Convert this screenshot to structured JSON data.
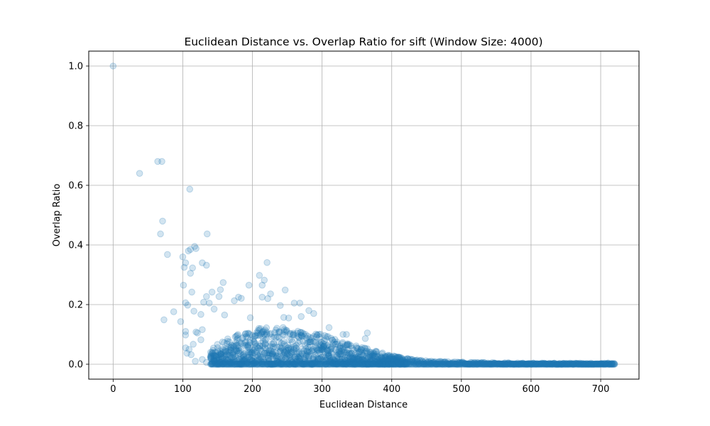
{
  "chart_data": {
    "type": "scatter",
    "title": "Euclidean Distance vs. Overlap Ratio for sift (Window Size: 4000)",
    "xlabel": "Euclidean Distance",
    "ylabel": "Overlap Ratio",
    "xlim": [
      -35,
      755
    ],
    "ylim": [
      -0.05,
      1.05
    ],
    "xticks": [
      0,
      100,
      200,
      300,
      400,
      500,
      600,
      700
    ],
    "yticks": [
      0.0,
      0.2,
      0.4,
      0.6,
      0.8,
      1.0
    ],
    "xtick_labels": [
      "0",
      "100",
      "200",
      "300",
      "400",
      "500",
      "600",
      "700"
    ],
    "ytick_labels": [
      "0.0",
      "0.2",
      "0.4",
      "0.6",
      "0.8",
      "1.0"
    ],
    "grid": true,
    "marker_color": "#1f77b4",
    "marker_alpha": 0.2,
    "series": [
      {
        "points": [
          [
            0,
            1.0
          ],
          [
            38,
            0.64
          ],
          [
            64,
            0.68
          ],
          [
            70,
            0.68
          ],
          [
            71,
            0.48
          ],
          [
            68,
            0.437
          ],
          [
            110,
            0.587
          ],
          [
            135,
            0.437
          ],
          [
            78,
            0.368
          ],
          [
            100,
            0.36
          ],
          [
            104,
            0.34
          ],
          [
            108,
            0.38
          ],
          [
            111,
            0.385
          ],
          [
            117,
            0.395
          ],
          [
            119,
            0.388
          ],
          [
            128,
            0.34
          ],
          [
            134,
            0.332
          ],
          [
            114,
            0.323
          ],
          [
            102,
            0.325
          ],
          [
            111,
            0.305
          ],
          [
            221,
            0.341
          ],
          [
            210,
            0.298
          ],
          [
            217,
            0.282
          ],
          [
            214,
            0.265
          ],
          [
            195,
            0.265
          ],
          [
            158,
            0.274
          ],
          [
            101,
            0.265
          ],
          [
            247,
            0.249
          ],
          [
            113,
            0.242
          ],
          [
            142,
            0.242
          ],
          [
            226,
            0.236
          ],
          [
            154,
            0.25
          ],
          [
            174,
            0.213
          ],
          [
            180,
            0.225
          ],
          [
            184,
            0.221
          ],
          [
            134,
            0.227
          ],
          [
            152,
            0.227
          ],
          [
            214,
            0.225
          ],
          [
            222,
            0.22
          ],
          [
            240,
            0.197
          ],
          [
            260,
            0.205
          ],
          [
            268,
            0.205
          ],
          [
            281,
            0.18
          ],
          [
            270,
            0.16
          ],
          [
            288,
            0.17
          ],
          [
            104,
            0.206
          ],
          [
            107,
            0.198
          ],
          [
            130,
            0.208
          ],
          [
            138,
            0.205
          ],
          [
            87,
            0.176
          ],
          [
            97,
            0.143
          ],
          [
            73,
            0.149
          ],
          [
            126,
            0.167
          ],
          [
            116,
            0.178
          ],
          [
            145,
            0.185
          ],
          [
            160,
            0.165
          ],
          [
            197,
            0.156
          ],
          [
            245,
            0.157
          ],
          [
            252,
            0.155
          ],
          [
            310,
            0.123
          ],
          [
            330,
            0.1
          ],
          [
            335,
            0.1
          ],
          [
            362,
            0.086
          ],
          [
            365,
            0.105
          ],
          [
            104,
            0.11
          ],
          [
            104,
            0.098
          ],
          [
            119,
            0.108
          ],
          [
            121,
            0.105
          ],
          [
            128,
            0.116
          ],
          [
            109,
            0.05
          ],
          [
            104,
            0.055
          ],
          [
            106,
            0.037
          ],
          [
            112,
            0.032
          ],
          [
            118,
            0.01
          ],
          [
            115,
            0.067
          ],
          [
            128,
            0.016
          ],
          [
            134,
            0.006
          ],
          [
            126,
            0.082
          ],
          [
            140,
            0.04
          ]
        ],
        "band": {
          "x_start": 140,
          "x_end": 720,
          "x_step": 1.4,
          "upper_envelope": [
            [
              140,
              0.05
            ],
            [
              160,
              0.085
            ],
            [
              190,
              0.11
            ],
            [
              220,
              0.13
            ],
            [
              260,
              0.12
            ],
            [
              300,
              0.1
            ],
            [
              340,
              0.07
            ],
            [
              370,
              0.05
            ],
            [
              400,
              0.03
            ],
            [
              430,
              0.016
            ],
            [
              470,
              0.01
            ],
            [
              520,
              0.006
            ],
            [
              600,
              0.004
            ],
            [
              720,
              0.004
            ]
          ]
        }
      }
    ]
  }
}
